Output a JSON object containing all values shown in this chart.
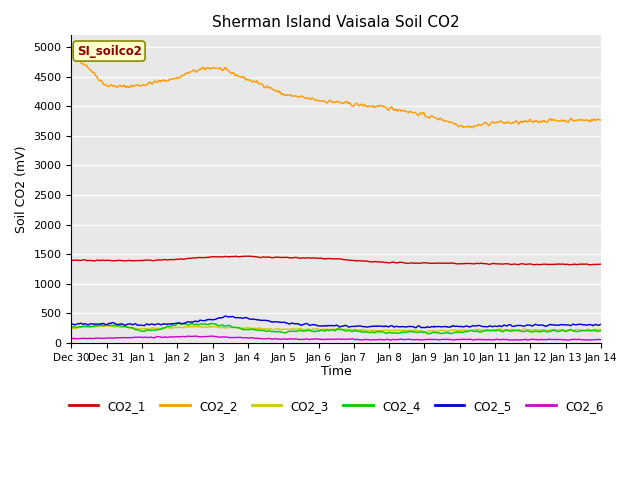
{
  "title": "Sherman Island Vaisala Soil CO2",
  "ylabel": "Soil CO2 (mV)",
  "xlabel": "Time",
  "annotation_label": "SI_soilco2",
  "ylim": [
    0,
    5200
  ],
  "yticks": [
    0,
    500,
    1000,
    1500,
    2000,
    2500,
    3000,
    3500,
    4000,
    4500,
    5000
  ],
  "bg_color": "#e8e8e8",
  "xtick_labels": [
    "Dec 30",
    "Dec 31",
    "Jan 1",
    "Jan 2",
    "Jan 3",
    "Jan 4",
    "Jan 5",
    "Jan 6",
    "Jan 7",
    "Jan 8",
    "Jan 9",
    "Jan 10",
    "Jan 11",
    "Jan 12",
    "Jan 13",
    "Jan 14"
  ],
  "colors": {
    "CO2_1": "#cc0000",
    "CO2_2": "#ff9900",
    "CO2_3": "#cccc00",
    "CO2_4": "#00cc00",
    "CO2_5": "#0000cc",
    "CO2_6": "#cc00cc"
  },
  "legend": [
    "CO2_1",
    "CO2_2",
    "CO2_3",
    "CO2_4",
    "CO2_5",
    "CO2_6"
  ],
  "figsize": [
    6.4,
    4.8
  ],
  "dpi": 100
}
